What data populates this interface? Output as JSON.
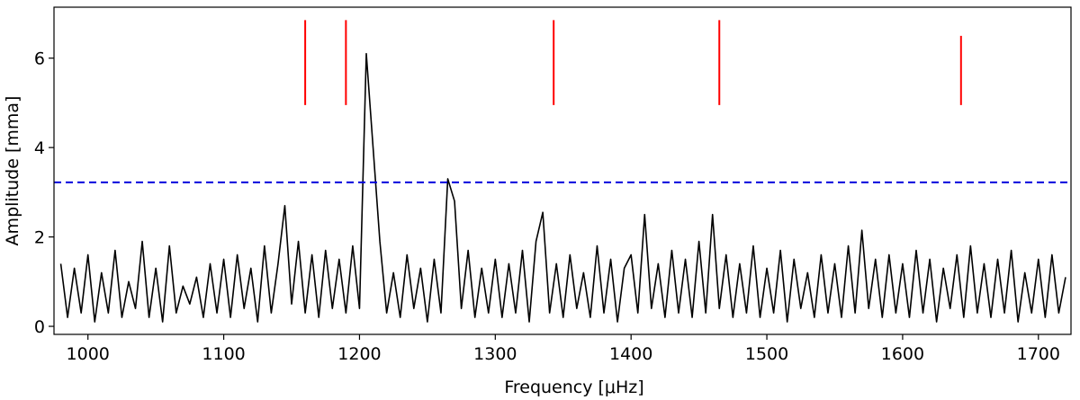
{
  "chart_data": {
    "type": "line",
    "xlabel": "Frequency [μHz]",
    "ylabel": "Amplitude [mma]",
    "xlim": [
      975,
      1724
    ],
    "ylim": [
      -0.18,
      7.14
    ],
    "xticks": [
      1000,
      1100,
      1200,
      1300,
      1400,
      1500,
      1600,
      1700
    ],
    "yticks": [
      0,
      2,
      4,
      6
    ],
    "series": [
      {
        "color": "#000000",
        "x": [
          980,
          985,
          990,
          995,
          1000,
          1005,
          1010,
          1015,
          1020,
          1025,
          1030,
          1035,
          1040,
          1045,
          1050,
          1055,
          1060,
          1065,
          1070,
          1075,
          1080,
          1085,
          1090,
          1095,
          1100,
          1105,
          1110,
          1115,
          1120,
          1125,
          1130,
          1135,
          1140,
          1145,
          1150,
          1155,
          1160,
          1165,
          1170,
          1175,
          1180,
          1185,
          1190,
          1195,
          1200,
          1205,
          1210,
          1215,
          1220,
          1225,
          1230,
          1235,
          1240,
          1245,
          1250,
          1255,
          1260,
          1265,
          1270,
          1275,
          1280,
          1285,
          1290,
          1295,
          1300,
          1305,
          1310,
          1315,
          1320,
          1325,
          1330,
          1335,
          1340,
          1345,
          1350,
          1355,
          1360,
          1365,
          1370,
          1375,
          1380,
          1385,
          1390,
          1395,
          1400,
          1405,
          1410,
          1415,
          1420,
          1425,
          1430,
          1435,
          1440,
          1445,
          1450,
          1455,
          1460,
          1465,
          1470,
          1475,
          1480,
          1485,
          1490,
          1495,
          1500,
          1505,
          1510,
          1515,
          1520,
          1525,
          1530,
          1535,
          1540,
          1545,
          1550,
          1555,
          1560,
          1565,
          1570,
          1575,
          1580,
          1585,
          1590,
          1595,
          1600,
          1605,
          1610,
          1615,
          1620,
          1625,
          1630,
          1635,
          1640,
          1645,
          1650,
          1655,
          1660,
          1665,
          1670,
          1675,
          1680,
          1685,
          1690,
          1695,
          1700,
          1705,
          1710,
          1715,
          1720
        ],
        "values": [
          1.4,
          0.2,
          1.3,
          0.3,
          1.6,
          0.1,
          1.2,
          0.3,
          1.7,
          0.2,
          1.0,
          0.4,
          1.9,
          0.2,
          1.3,
          0.1,
          1.8,
          0.3,
          0.9,
          0.5,
          1.1,
          0.2,
          1.4,
          0.3,
          1.5,
          0.2,
          1.6,
          0.4,
          1.3,
          0.1,
          1.8,
          0.3,
          1.4,
          2.7,
          0.5,
          1.9,
          0.3,
          1.6,
          0.2,
          1.7,
          0.4,
          1.5,
          0.3,
          1.8,
          0.4,
          6.1,
          4.0,
          1.9,
          0.3,
          1.2,
          0.2,
          1.6,
          0.4,
          1.3,
          0.1,
          1.5,
          0.3,
          3.3,
          2.8,
          0.4,
          1.7,
          0.2,
          1.3,
          0.3,
          1.5,
          0.2,
          1.4,
          0.3,
          1.7,
          0.1,
          1.9,
          2.55,
          0.3,
          1.4,
          0.2,
          1.6,
          0.4,
          1.2,
          0.2,
          1.8,
          0.3,
          1.5,
          0.1,
          1.3,
          1.6,
          0.3,
          2.5,
          0.4,
          1.4,
          0.2,
          1.7,
          0.3,
          1.5,
          0.2,
          1.9,
          0.3,
          2.5,
          0.4,
          1.6,
          0.2,
          1.4,
          0.3,
          1.8,
          0.2,
          1.3,
          0.3,
          1.7,
          0.1,
          1.5,
          0.4,
          1.2,
          0.2,
          1.6,
          0.3,
          1.4,
          0.2,
          1.8,
          0.3,
          2.15,
          0.4,
          1.5,
          0.2,
          1.6,
          0.3,
          1.4,
          0.2,
          1.7,
          0.3,
          1.5,
          0.1,
          1.3,
          0.4,
          1.6,
          0.2,
          1.8,
          0.3,
          1.4,
          0.2,
          1.5,
          0.3,
          1.7,
          0.1,
          1.2,
          0.3,
          1.5,
          0.2,
          1.6,
          0.3,
          1.1
        ]
      }
    ],
    "markers": {
      "color": "#ff0000",
      "x": [
        1160,
        1190,
        1343,
        1465,
        1643
      ],
      "y_low": [
        4.95,
        4.95,
        4.95,
        4.95,
        4.95
      ],
      "y_high": [
        6.85,
        6.85,
        6.85,
        6.85,
        6.5
      ]
    },
    "threshold": {
      "value": 3.22,
      "color": "#0000dd",
      "dashed": true
    }
  }
}
